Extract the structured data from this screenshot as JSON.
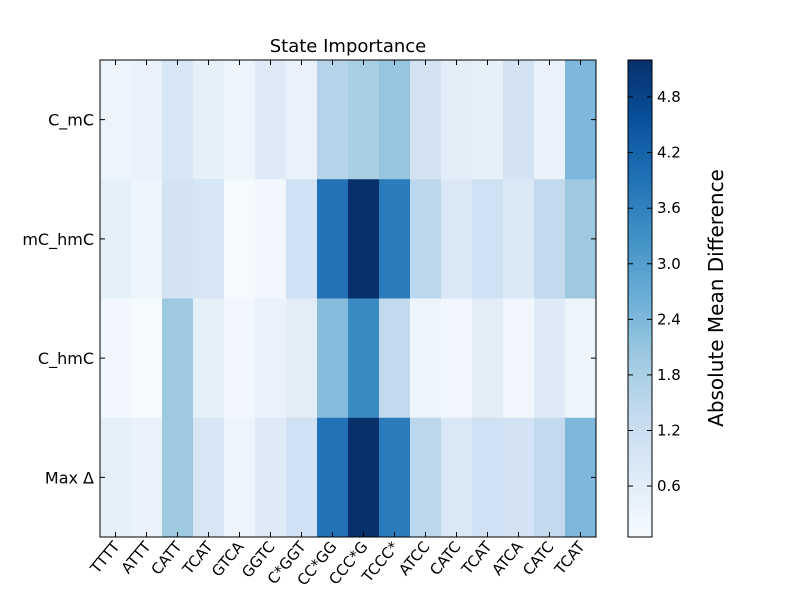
{
  "chart_data": {
    "type": "heatmap",
    "title": "State Importance",
    "x_categories": [
      "TTTT",
      "ATTT",
      "CATT",
      "TCAT",
      "GTCA",
      "GGTC",
      "C*GGT",
      "CC*GG",
      "CCC*G",
      "TCCC*",
      "ATCC",
      "CATC",
      "TCAT",
      "ATCA",
      "CATC",
      "TCAT"
    ],
    "y_categories": [
      "C_mC",
      "mC_hmC",
      "C_hmC",
      "Max Δ"
    ],
    "values": [
      [
        0.3,
        0.4,
        0.9,
        0.5,
        0.3,
        0.7,
        0.4,
        1.6,
        1.8,
        2.1,
        1.0,
        0.6,
        0.5,
        1.0,
        0.4,
        2.4
      ],
      [
        0.5,
        0.3,
        1.0,
        0.9,
        0.1,
        0.2,
        1.1,
        3.9,
        5.2,
        3.7,
        1.5,
        0.8,
        1.1,
        0.8,
        1.4,
        2.0
      ],
      [
        0.2,
        0.1,
        2.0,
        0.5,
        0.2,
        0.4,
        0.6,
        2.3,
        3.4,
        1.4,
        0.3,
        0.2,
        0.6,
        0.2,
        0.7,
        0.3
      ],
      [
        0.5,
        0.4,
        2.0,
        0.9,
        0.3,
        0.7,
        1.1,
        3.9,
        5.2,
        3.7,
        1.5,
        0.8,
        1.1,
        1.0,
        1.4,
        2.4
      ]
    ],
    "colorbar": {
      "label": "Absolute Mean Difference",
      "min": 0.05,
      "max": 5.2,
      "ticks": [
        0.6,
        1.2,
        1.8,
        2.4,
        3.0,
        3.6,
        4.2,
        4.8
      ],
      "tick_labels": [
        "0.6",
        "1.2",
        "1.8",
        "2.4",
        "3.0",
        "3.6",
        "4.2",
        "4.8"
      ],
      "colormap": "Blues"
    },
    "grid": false
  }
}
